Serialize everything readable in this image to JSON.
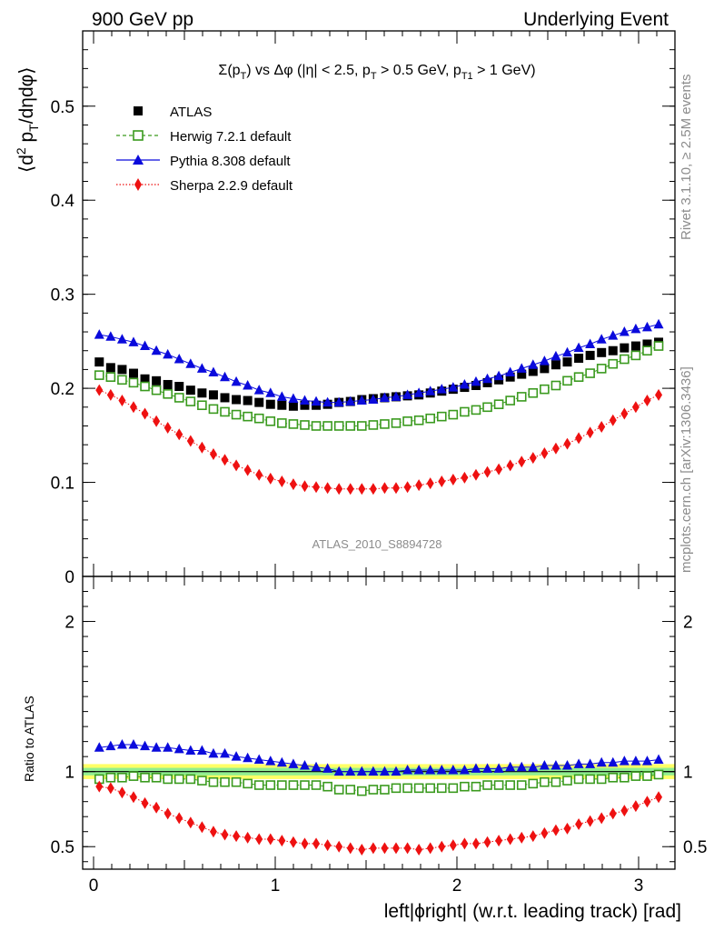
{
  "header": {
    "left": "900 GeV pp",
    "right": "Underlying Event"
  },
  "side_labels": {
    "rivet": "Rivet 3.1.10, ≥ 2.5M events",
    "mcplots": "mcplots.cern.ch [arXiv:1306.3436]"
  },
  "chart_data": [
    {
      "type": "scatter",
      "panel": "main",
      "title_parts": {
        "sigma": "Σ(p",
        "t1": "T",
        "t2": ") vs Δφ (|η| < 2.5, p",
        "t3": "T",
        "t4": " > 0.5 GeV, p",
        "t5": "T1",
        "t6": " > 1 GeV)"
      },
      "ylabel_parts": {
        "a": "⟨d",
        "b": "2",
        "c": " p",
        "d": "T",
        "e": "/dηdφ⟩"
      },
      "watermark": "ATLAS_2010_S8894728",
      "ylim": [
        0,
        0.58
      ],
      "xlim": [
        -0.06,
        3.2
      ],
      "yticks": [
        0,
        0.1,
        0.2,
        0.3,
        0.4,
        0.5
      ],
      "ytick_labels": [
        "0",
        "0.1",
        "0.2",
        "0.3",
        "0.4",
        "0.5"
      ],
      "legend_position": "top-left",
      "legend": [
        "ATLAS",
        "Herwig 7.2.1 default",
        "Pythia 8.308 default",
        "Sherpa 2.2.9 default"
      ],
      "x": [
        0.0314,
        0.0942,
        0.1571,
        0.2199,
        0.2827,
        0.3456,
        0.4084,
        0.4712,
        0.5341,
        0.5969,
        0.6597,
        0.7226,
        0.7854,
        0.8482,
        0.9111,
        0.9739,
        1.0367,
        1.0996,
        1.1624,
        1.2252,
        1.2881,
        1.3509,
        1.4137,
        1.4765,
        1.5394,
        1.6022,
        1.665,
        1.7279,
        1.7907,
        1.8535,
        1.9164,
        1.9792,
        2.042,
        2.1049,
        2.1677,
        2.2305,
        2.2934,
        2.3562,
        2.419,
        2.4819,
        2.5447,
        2.6075,
        2.6704,
        2.7332,
        2.796,
        2.8588,
        2.9217,
        2.9845,
        3.0473,
        3.1102
      ],
      "series": [
        {
          "name": "ATLAS",
          "color": "#000000",
          "marker": "square-filled",
          "values": [
            0.228,
            0.222,
            0.22,
            0.216,
            0.21,
            0.208,
            0.204,
            0.202,
            0.198,
            0.195,
            0.193,
            0.19,
            0.188,
            0.187,
            0.185,
            0.183,
            0.182,
            0.181,
            0.182,
            0.182,
            0.183,
            0.185,
            0.186,
            0.188,
            0.189,
            0.19,
            0.191,
            0.192,
            0.193,
            0.195,
            0.197,
            0.199,
            0.201,
            0.203,
            0.206,
            0.209,
            0.212,
            0.215,
            0.218,
            0.221,
            0.225,
            0.228,
            0.232,
            0.235,
            0.238,
            0.24,
            0.243,
            0.245,
            0.247,
            0.249
          ]
        },
        {
          "name": "Herwig 7.2.1 default",
          "color": "#3a9a1e",
          "marker": "square-open",
          "values": [
            0.214,
            0.212,
            0.209,
            0.206,
            0.202,
            0.198,
            0.194,
            0.19,
            0.186,
            0.182,
            0.178,
            0.175,
            0.172,
            0.17,
            0.168,
            0.165,
            0.163,
            0.162,
            0.161,
            0.16,
            0.16,
            0.16,
            0.16,
            0.16,
            0.161,
            0.162,
            0.163,
            0.165,
            0.166,
            0.168,
            0.17,
            0.172,
            0.175,
            0.177,
            0.18,
            0.183,
            0.187,
            0.191,
            0.195,
            0.199,
            0.203,
            0.208,
            0.212,
            0.216,
            0.221,
            0.226,
            0.231,
            0.235,
            0.24,
            0.245
          ]
        },
        {
          "name": "Pythia 8.308 default",
          "color": "#0a0adc",
          "marker": "triangle-filled",
          "values": [
            0.257,
            0.255,
            0.252,
            0.249,
            0.245,
            0.24,
            0.236,
            0.231,
            0.226,
            0.221,
            0.217,
            0.212,
            0.207,
            0.203,
            0.198,
            0.195,
            0.191,
            0.189,
            0.187,
            0.186,
            0.185,
            0.185,
            0.186,
            0.187,
            0.188,
            0.19,
            0.191,
            0.193,
            0.195,
            0.197,
            0.199,
            0.201,
            0.204,
            0.207,
            0.21,
            0.213,
            0.217,
            0.221,
            0.225,
            0.229,
            0.234,
            0.238,
            0.243,
            0.247,
            0.252,
            0.256,
            0.26,
            0.263,
            0.265,
            0.268
          ]
        },
        {
          "name": "Sherpa 2.2.9 default",
          "color": "#ee1111",
          "marker": "diamond-filled",
          "values": [
            0.198,
            0.193,
            0.187,
            0.18,
            0.173,
            0.165,
            0.158,
            0.151,
            0.144,
            0.137,
            0.13,
            0.124,
            0.118,
            0.113,
            0.108,
            0.104,
            0.101,
            0.098,
            0.096,
            0.095,
            0.094,
            0.093,
            0.093,
            0.093,
            0.093,
            0.094,
            0.094,
            0.095,
            0.097,
            0.099,
            0.101,
            0.103,
            0.105,
            0.108,
            0.111,
            0.114,
            0.118,
            0.122,
            0.126,
            0.131,
            0.136,
            0.141,
            0.147,
            0.153,
            0.159,
            0.166,
            0.173,
            0.18,
            0.187,
            0.193
          ]
        }
      ]
    },
    {
      "type": "scatter",
      "panel": "ratio",
      "ylabel": "Ratio to ATLAS",
      "xlabel": "left|ϕright| (w.r.t. leading track) [rad]",
      "ylim": [
        0.35,
        2.3
      ],
      "xlim": [
        -0.06,
        3.2
      ],
      "yticks": [
        0.5,
        1,
        2
      ],
      "ytick_labels": [
        "0.5",
        "1",
        "2"
      ],
      "xticks": [
        0,
        1,
        2,
        3
      ],
      "xtick_labels": [
        "0",
        "1",
        "2",
        "3"
      ],
      "reference_line": 1,
      "band_inner": [
        0.975,
        1.025
      ],
      "band_outer": [
        0.95,
        1.05
      ],
      "band_colors": {
        "inner": "#90ee90",
        "outer": "#ffff66"
      },
      "series": [
        {
          "name": "Herwig 7.2.1 default",
          "color": "#3a9a1e",
          "marker": "square-open",
          "values": [
            0.95,
            0.96,
            0.96,
            0.97,
            0.96,
            0.96,
            0.95,
            0.95,
            0.95,
            0.94,
            0.93,
            0.93,
            0.93,
            0.92,
            0.91,
            0.91,
            0.91,
            0.91,
            0.91,
            0.91,
            0.9,
            0.88,
            0.88,
            0.87,
            0.88,
            0.88,
            0.89,
            0.89,
            0.89,
            0.89,
            0.89,
            0.89,
            0.9,
            0.9,
            0.91,
            0.91,
            0.91,
            0.91,
            0.92,
            0.93,
            0.93,
            0.94,
            0.95,
            0.95,
            0.95,
            0.96,
            0.96,
            0.97,
            0.97,
            0.98
          ]
        },
        {
          "name": "Pythia 8.308 default",
          "color": "#0a0adc",
          "marker": "triangle-filled",
          "values": [
            1.16,
            1.17,
            1.18,
            1.18,
            1.17,
            1.16,
            1.16,
            1.15,
            1.14,
            1.14,
            1.12,
            1.12,
            1.1,
            1.09,
            1.08,
            1.07,
            1.06,
            1.05,
            1.04,
            1.03,
            1.02,
            1.0,
            1.0,
            1.0,
            1.0,
            1.0,
            1.0,
            1.01,
            1.01,
            1.01,
            1.01,
            1.01,
            1.01,
            1.02,
            1.02,
            1.02,
            1.03,
            1.03,
            1.03,
            1.04,
            1.04,
            1.04,
            1.05,
            1.05,
            1.06,
            1.06,
            1.07,
            1.07,
            1.07,
            1.08
          ]
        },
        {
          "name": "Sherpa 2.2.9 default",
          "color": "#ee1111",
          "marker": "diamond-filled",
          "values": [
            0.9,
            0.89,
            0.86,
            0.83,
            0.79,
            0.76,
            0.72,
            0.69,
            0.66,
            0.63,
            0.6,
            0.58,
            0.57,
            0.56,
            0.55,
            0.55,
            0.54,
            0.53,
            0.52,
            0.52,
            0.51,
            0.5,
            0.49,
            0.48,
            0.49,
            0.49,
            0.49,
            0.49,
            0.48,
            0.49,
            0.5,
            0.51,
            0.52,
            0.52,
            0.53,
            0.54,
            0.55,
            0.56,
            0.57,
            0.59,
            0.61,
            0.62,
            0.65,
            0.67,
            0.69,
            0.72,
            0.74,
            0.77,
            0.8,
            0.83
          ]
        }
      ]
    }
  ]
}
